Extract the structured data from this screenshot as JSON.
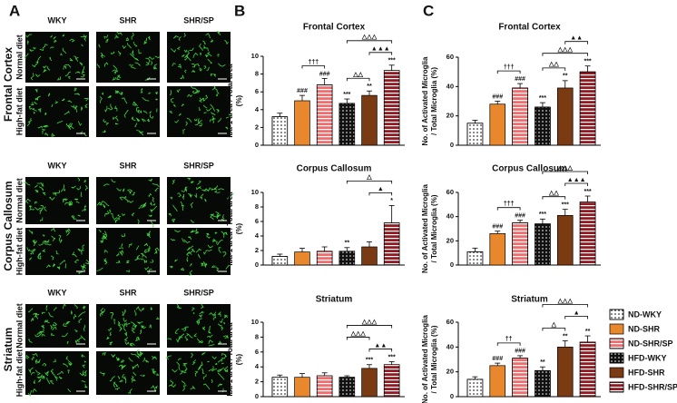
{
  "panel_labels": [
    "A",
    "B",
    "C"
  ],
  "micrographs": {
    "columns": [
      "WKY",
      "SHR",
      "SHR/SP"
    ],
    "regions": [
      "Frontal Cortex",
      "Corpus Callosum",
      "Striatum"
    ],
    "diets": [
      "Normal diet",
      "High-fat diet"
    ]
  },
  "legend": [
    {
      "name": "ND-WKY",
      "color": "#ffffff",
      "pattern": "dots"
    },
    {
      "name": "ND-SHR",
      "color": "#e8872c",
      "pattern": "none"
    },
    {
      "name": "ND-SHR/SP",
      "color": "#ee6f6f",
      "pattern": "stripes"
    },
    {
      "name": "HFD-WKY",
      "color": "#111111",
      "pattern": "dots"
    },
    {
      "name": "HFD-SHR",
      "color": "#7a3a12",
      "pattern": "none"
    },
    {
      "name": "HFD-SHR/SP",
      "color": "#8e1c22",
      "pattern": "stripes"
    }
  ],
  "chart_data": [
    {
      "type": "bar",
      "title": "Frontal Cortex",
      "ylabel": [
        "Iba-1 area / Total area",
        "(%)"
      ],
      "values": [
        3.2,
        5.0,
        6.8,
        4.7,
        5.6,
        8.4
      ],
      "errors": [
        0.4,
        0.6,
        0.7,
        0.5,
        0.5,
        0.6
      ],
      "ylim": [
        0,
        10
      ],
      "yticks": [
        0,
        2,
        4,
        6,
        8,
        10
      ],
      "bar_marks": [
        null,
        "###",
        "###",
        "***",
        "**",
        "***"
      ],
      "brackets": [
        {
          "between": [
            "ND-SHR",
            "ND-SHR/SP"
          ],
          "label": "†††"
        },
        {
          "between": [
            "HFD-WKY",
            "HFD-SHR"
          ],
          "label": "△△"
        },
        {
          "between": [
            "HFD-SHR",
            "HFD-SHR/SP"
          ],
          "label": "▲▲▲"
        },
        {
          "between": [
            "HFD-WKY",
            "HFD-SHR/SP"
          ],
          "label": "△△△"
        }
      ]
    },
    {
      "type": "bar",
      "title": "Corpus Callosum",
      "ylabel": [
        "Iba-1 area / Total area",
        "(%)"
      ],
      "values": [
        1.2,
        1.8,
        1.9,
        1.9,
        2.5,
        5.8
      ],
      "errors": [
        0.3,
        0.5,
        0.6,
        0.5,
        0.7,
        2.4
      ],
      "ylim": [
        0,
        10
      ],
      "yticks": [
        0,
        2,
        4,
        6,
        8,
        10
      ],
      "bar_marks": [
        null,
        null,
        null,
        "**",
        null,
        "*"
      ],
      "brackets": [
        {
          "between": [
            "HFD-SHR",
            "HFD-SHR/SP"
          ],
          "label": "▲"
        },
        {
          "between": [
            "HFD-WKY",
            "HFD-SHR/SP"
          ],
          "label": "△"
        }
      ]
    },
    {
      "type": "bar",
      "title": "Striatum",
      "ylabel": [
        "Iba-1 area / Total area",
        "(%)"
      ],
      "values": [
        2.6,
        2.6,
        2.8,
        2.6,
        3.8,
        4.3
      ],
      "errors": [
        0.3,
        0.5,
        0.4,
        0.2,
        0.5,
        0.4
      ],
      "ylim": [
        0,
        10
      ],
      "yticks": [
        0,
        2,
        4,
        6,
        8,
        10
      ],
      "bar_marks": [
        null,
        null,
        null,
        null,
        "***",
        "***"
      ],
      "brackets": [
        {
          "between": [
            "HFD-SHR",
            "HFD-SHR/SP"
          ],
          "label": "▲▲"
        },
        {
          "between": [
            "HFD-WKY",
            "HFD-SHR"
          ],
          "label": "△△△"
        },
        {
          "between": [
            "HFD-WKY",
            "HFD-SHR/SP"
          ],
          "label": "△△△"
        }
      ]
    },
    {
      "type": "bar",
      "title": "Frontal Cortex",
      "ylabel": [
        "No. of Activated Microglia",
        "/ Total Microglia (%)"
      ],
      "values": [
        15,
        28,
        39,
        26,
        39,
        50
      ],
      "errors": [
        2,
        2,
        3,
        3,
        5,
        4
      ],
      "ylim": [
        0,
        60
      ],
      "yticks": [
        0,
        20,
        40,
        60
      ],
      "bar_marks": [
        null,
        "###",
        "###",
        "***",
        "**",
        "***"
      ],
      "brackets": [
        {
          "between": [
            "ND-SHR",
            "ND-SHR/SP"
          ],
          "label": "†††"
        },
        {
          "between": [
            "HFD-WKY",
            "HFD-SHR"
          ],
          "label": "△△"
        },
        {
          "between": [
            "HFD-WKY",
            "HFD-SHR/SP"
          ],
          "label": "△△△"
        },
        {
          "between": [
            "HFD-SHR",
            "HFD-SHR/SP"
          ],
          "label": "▲▲"
        }
      ]
    },
    {
      "type": "bar",
      "title": "Corpus Callosum",
      "ylabel": [
        "No. of Activated Microglia",
        "/ Total Microglia (%)"
      ],
      "values": [
        11,
        26,
        35,
        34,
        41,
        52
      ],
      "errors": [
        3,
        2,
        2,
        4,
        5,
        5
      ],
      "ylim": [
        0,
        60
      ],
      "yticks": [
        0,
        20,
        40,
        60
      ],
      "bar_marks": [
        null,
        "###",
        "###",
        "***",
        "***",
        "***"
      ],
      "brackets": [
        {
          "between": [
            "ND-SHR",
            "ND-SHR/SP"
          ],
          "label": "†††"
        },
        {
          "between": [
            "HFD-WKY",
            "HFD-SHR"
          ],
          "label": "△△"
        },
        {
          "between": [
            "HFD-SHR",
            "HFD-SHR/SP"
          ],
          "label": "▲▲▲"
        },
        {
          "between": [
            "HFD-WKY",
            "HFD-SHR/SP"
          ],
          "label": "△△△"
        }
      ]
    },
    {
      "type": "bar",
      "title": "Striatum",
      "ylabel": [
        "No. of Activated Microglia",
        "/ Total Microglia (%)"
      ],
      "values": [
        14,
        25,
        31,
        21,
        40,
        44
      ],
      "errors": [
        2,
        2,
        2,
        3,
        5,
        5
      ],
      "ylim": [
        0,
        60
      ],
      "yticks": [
        0,
        20,
        40,
        60
      ],
      "bar_marks": [
        null,
        "###",
        "###",
        "**",
        "**",
        "**"
      ],
      "brackets": [
        {
          "between": [
            "ND-SHR",
            "ND-SHR/SP"
          ],
          "label": "††"
        },
        {
          "between": [
            "HFD-WKY",
            "HFD-SHR"
          ],
          "label": "△"
        },
        {
          "between": [
            "HFD-SHR",
            "HFD-SHR/SP"
          ],
          "label": "▲"
        },
        {
          "between": [
            "HFD-WKY",
            "HFD-SHR/SP"
          ],
          "label": "△△△"
        }
      ]
    }
  ]
}
